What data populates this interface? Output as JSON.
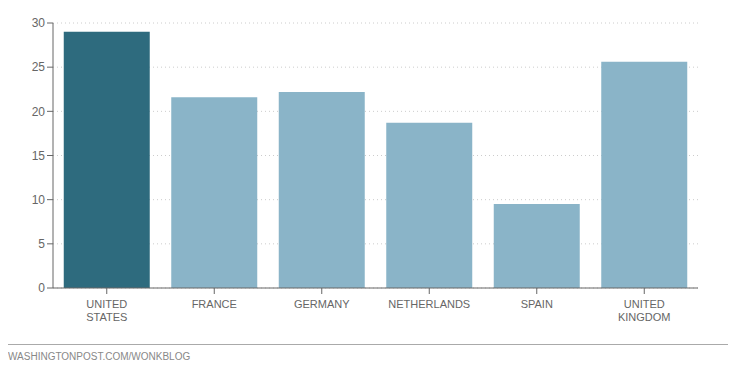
{
  "chart_data": {
    "type": "bar",
    "categories": [
      "UNITED\nSTATES",
      "FRANCE",
      "GERMANY",
      "NETHERLANDS",
      "SPAIN",
      "UNITED\nKINGDOM"
    ],
    "values": [
      29.0,
      21.6,
      22.2,
      18.7,
      9.5,
      25.6
    ],
    "colors": [
      "#2e6b7e",
      "#8ab4c8",
      "#8ab4c8",
      "#8ab4c8",
      "#8ab4c8",
      "#8ab4c8"
    ],
    "ylim": [
      0,
      30
    ],
    "yticks": [
      0,
      5,
      10,
      15,
      20,
      25,
      30
    ],
    "grid": true,
    "annotations": [
      "WASHINGTONPOST.COM/WONKBLOG"
    ]
  }
}
